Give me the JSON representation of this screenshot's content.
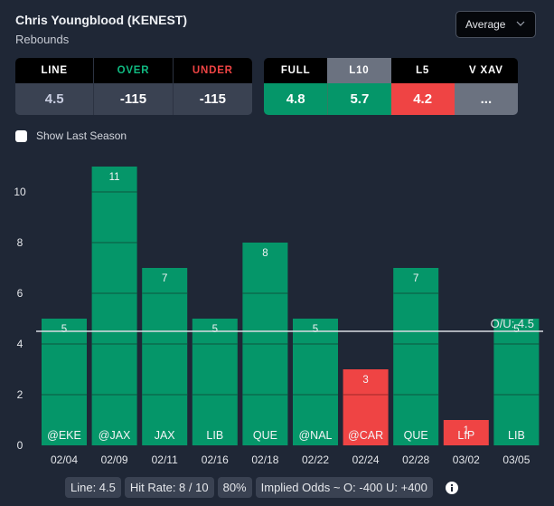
{
  "header": {
    "player": "Chris Youngblood (KENEST)",
    "stat": "Rebounds",
    "dropdown": {
      "selected": "Average",
      "icon": "chevron-down-icon"
    }
  },
  "odds_table": {
    "headers": [
      "LINE",
      "OVER",
      "UNDER"
    ],
    "values": [
      "4.5",
      "-115",
      "-115"
    ]
  },
  "average_table": {
    "headers": [
      "FULL",
      "L10",
      "L5",
      "V XAV"
    ],
    "values": [
      "4.8",
      "5.7",
      "4.2",
      "..."
    ],
    "active": "L10",
    "cell_status": [
      "hit",
      "hit",
      "miss",
      "none"
    ]
  },
  "checkbox": {
    "label": "Show Last Season",
    "checked": false
  },
  "colors": {
    "background": "#1f2736",
    "hit": "#059669",
    "miss": "#ef4444",
    "neutral": "#6b7280",
    "over_text": "#10b981",
    "under_text": "#ef4444"
  },
  "chart_data": {
    "type": "bar",
    "categories": [
      "02/04",
      "02/09",
      "02/11",
      "02/16",
      "02/18",
      "02/22",
      "02/24",
      "02/28",
      "03/02",
      "03/05"
    ],
    "opponents": [
      "@EKE",
      "@JAX",
      "JAX",
      "LIB",
      "QUE",
      "@NAL",
      "@CAR",
      "QUE",
      "LIP",
      "LIB"
    ],
    "values": [
      5,
      11,
      7,
      5,
      8,
      5,
      3,
      7,
      1,
      5
    ],
    "line": 4.5,
    "line_label": "O/U: 4.5",
    "ylim": [
      0,
      11
    ],
    "yticks": [
      0,
      2,
      4,
      6,
      8,
      10
    ],
    "grid": true,
    "title": "",
    "xlabel": "",
    "ylabel": ""
  },
  "footer": {
    "pills": [
      "Line: 4.5",
      "Hit Rate: 8 / 10",
      "80%",
      "Implied Odds ~ O: -400 U: +400"
    ],
    "info_icon": "info-icon"
  }
}
